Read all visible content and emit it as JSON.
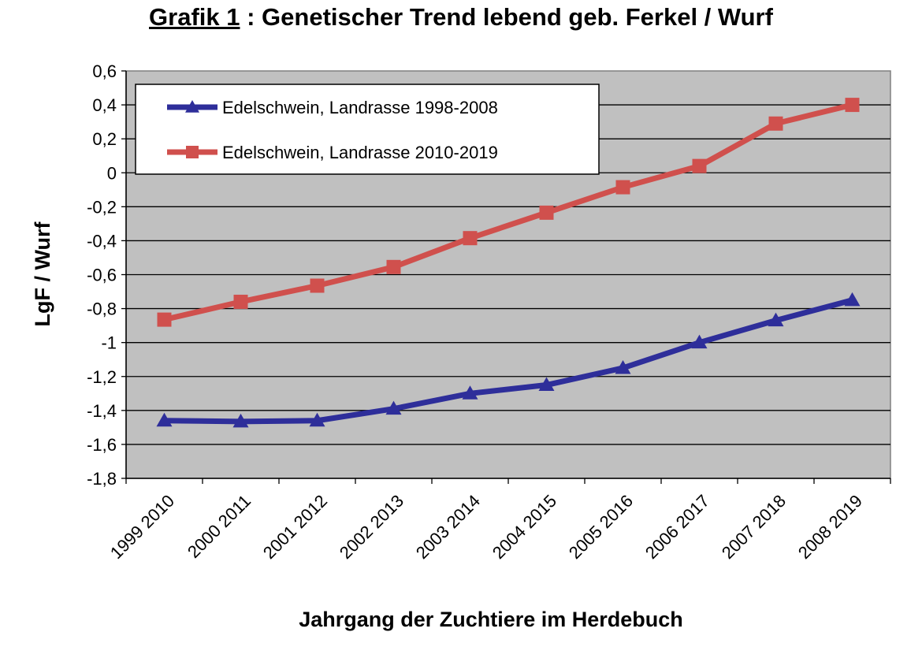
{
  "title": {
    "lead": "Grafik 1",
    "rest": ": Genetischer Trend lebend geb. Ferkel / Wurf"
  },
  "chart_data": {
    "type": "line",
    "title": "Grafik 1 : Genetischer Trend lebend geb. Ferkel / Wurf",
    "xlabel": "Jahrgang der Zuchtiere im Herdebuch",
    "ylabel": "LgF / Wurf",
    "categories": [
      "1999  2010",
      "2000  2011",
      "2001  2012",
      "2002  2013",
      "2003  2014",
      "2004  2015",
      "2005  2016",
      "2006  2017",
      "2007  2018",
      "2008  2019"
    ],
    "ylim": [
      -1.8,
      0.6
    ],
    "yticks": [
      "0,6",
      "0,4",
      "0,2",
      "0",
      "-0,2",
      "-0,4",
      "-0,6",
      "-0,8",
      "-1",
      "-1,2",
      "-1,4",
      "-1,6",
      "-1,8"
    ],
    "grid": true,
    "legend_position": "top-left",
    "plot_background": "#c0c0c0",
    "series": [
      {
        "name": "Edelschwein, Landrasse 1998-2008",
        "color": "#2e2e9a",
        "marker": "triangle",
        "values": [
          -1.46,
          -1.465,
          -1.46,
          -1.39,
          -1.3,
          -1.25,
          -1.15,
          -1.0,
          -0.87,
          -0.75
        ]
      },
      {
        "name": "Edelschwein, Landrasse 2010-2019",
        "color": "#d0504d",
        "marker": "square",
        "values": [
          -0.865,
          -0.76,
          -0.665,
          -0.555,
          -0.385,
          -0.235,
          -0.085,
          0.04,
          0.29,
          0.4
        ]
      }
    ]
  }
}
